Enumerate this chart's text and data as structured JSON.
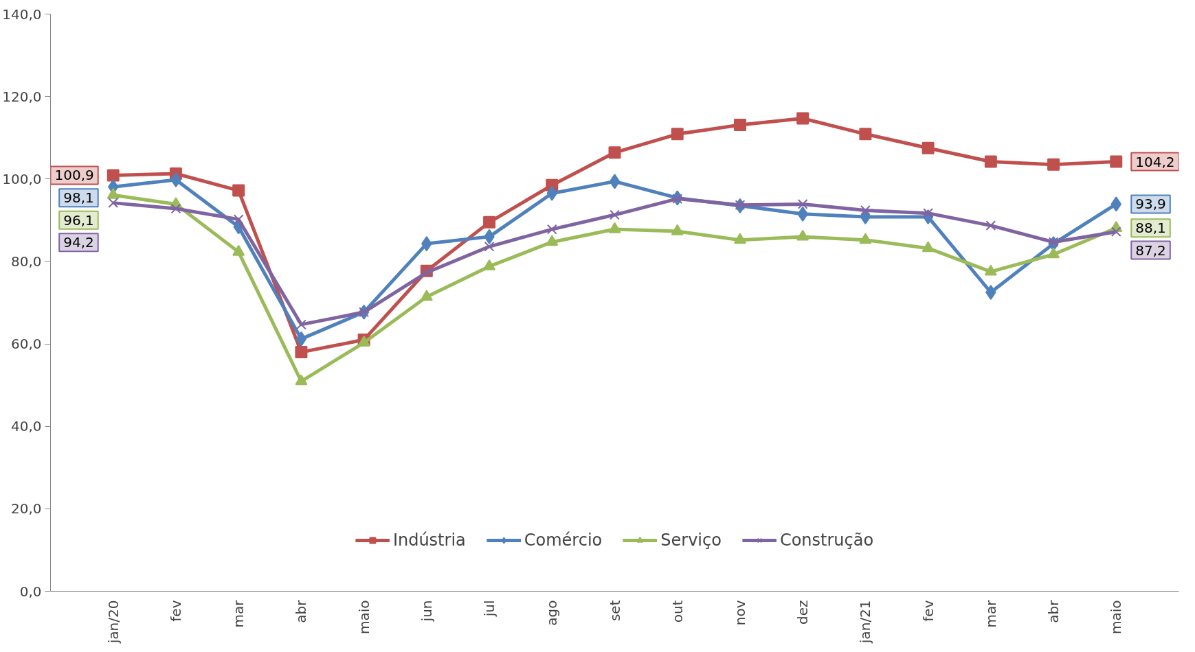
{
  "chart_data": {
    "type": "line",
    "categories": [
      "jan/20",
      "fev",
      "mar",
      "abr",
      "maio",
      "jun",
      "jul",
      "ago",
      "set",
      "out",
      "nov",
      "dez",
      "jan/21",
      "fev",
      "mar",
      "abr",
      "maio"
    ],
    "series": [
      {
        "name": "Indústria",
        "color": "#c0504d",
        "marker": "square",
        "values": [
          100.9,
          101.3,
          97.2,
          58.0,
          61.0,
          77.7,
          89.5,
          98.5,
          106.4,
          110.9,
          113.1,
          114.7,
          110.9,
          107.5,
          104.2,
          103.5,
          104.2
        ],
        "value_labels": [
          "100,9",
          null,
          null,
          null,
          null,
          null,
          null,
          null,
          null,
          null,
          null,
          null,
          null,
          null,
          null,
          null,
          "104,2"
        ]
      },
      {
        "name": "Comércio",
        "color": "#4f81bd",
        "marker": "diamond",
        "values": [
          98.1,
          99.8,
          88.4,
          61.2,
          67.7,
          84.3,
          86.0,
          96.5,
          99.4,
          95.4,
          93.5,
          91.5,
          90.8,
          90.8,
          72.5,
          84.3,
          93.9
        ],
        "value_labels": [
          "98,1",
          null,
          null,
          null,
          null,
          null,
          null,
          null,
          null,
          null,
          null,
          null,
          null,
          null,
          null,
          null,
          "93,9"
        ]
      },
      {
        "name": "Serviço",
        "color": "#9bbb59",
        "marker": "triangle",
        "values": [
          96.1,
          93.9,
          82.3,
          50.9,
          60.3,
          71.4,
          78.8,
          84.7,
          87.8,
          87.3,
          85.2,
          86.0,
          85.2,
          83.2,
          77.5,
          81.7,
          88.1
        ],
        "value_labels": [
          "96,1",
          null,
          null,
          null,
          null,
          null,
          null,
          null,
          null,
          null,
          null,
          null,
          null,
          null,
          null,
          null,
          "88,1"
        ]
      },
      {
        "name": "Construção",
        "color": "#8064a2",
        "marker": "x",
        "values": [
          94.2,
          92.8,
          90.2,
          64.7,
          67.7,
          77.3,
          83.6,
          87.8,
          91.3,
          95.2,
          93.7,
          93.9,
          92.4,
          91.7,
          88.7,
          84.7,
          87.2
        ],
        "value_labels": [
          "94,2",
          null,
          null,
          null,
          null,
          null,
          null,
          null,
          null,
          null,
          null,
          null,
          null,
          null,
          null,
          null,
          "87,2"
        ]
      }
    ],
    "ylim": [
      0,
      140
    ],
    "yticks": [
      {
        "value": 0,
        "label": "0,0"
      },
      {
        "value": 20,
        "label": "20,0"
      },
      {
        "value": 40,
        "label": "40,0"
      },
      {
        "value": 60,
        "label": "60,0"
      },
      {
        "value": 80,
        "label": "80,0"
      },
      {
        "value": 100,
        "label": "100,0"
      },
      {
        "value": 120,
        "label": "120,0"
      },
      {
        "value": 140,
        "label": "140,0"
      }
    ],
    "legend": "bottom",
    "line_style": "solid"
  }
}
